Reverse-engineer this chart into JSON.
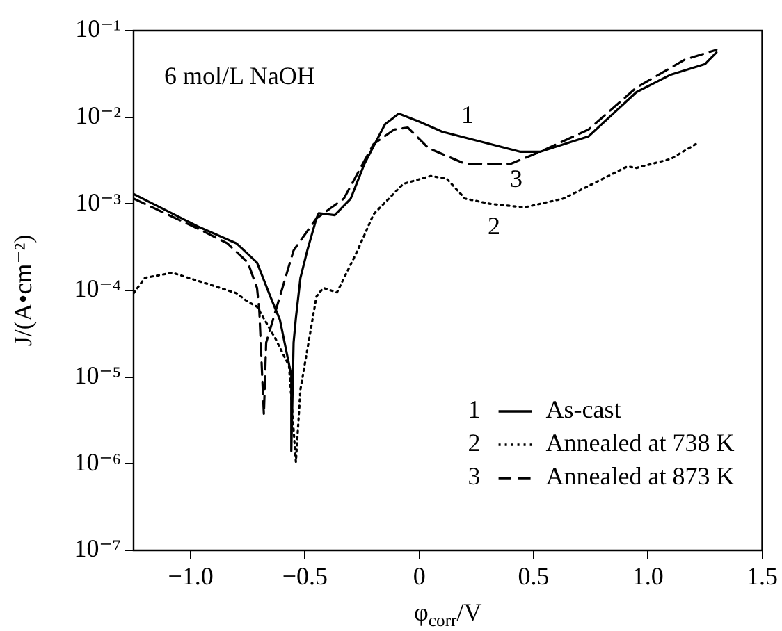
{
  "chart_data": {
    "type": "line",
    "xlabel": "φ$_{corr}$/V",
    "ylabel": "J/(A•cm⁻²)",
    "log": "y",
    "legend": "bottom right",
    "xlim": [
      -1.25,
      1.5
    ],
    "xticks": [
      {
        "value": -1,
        "label": "−1.0"
      },
      {
        "value": -0.5,
        "label": "−0.5"
      },
      0,
      0.5,
      {
        "value": 1,
        "label": "1.0"
      },
      1.5
    ],
    "ylim": [
      1e-07,
      0.1
    ],
    "yticks": [
      {
        "value": 1e-07,
        "label": "10⁻⁷"
      },
      {
        "value": 1e-06,
        "label": "10⁻⁶"
      },
      {
        "value": 1e-05,
        "label": "10⁻⁵"
      },
      {
        "value": 0.0001,
        "label": "10⁻⁴"
      },
      {
        "value": 0.001,
        "label": "10⁻³"
      },
      {
        "value": 0.01,
        "label": "10⁻²"
      },
      {
        "value": 0.1,
        "label": "10⁻¹"
      }
    ],
    "series": [
      {
        "name": "As-cast",
        "color": "#000000",
        "line_style": "solid",
        "x": [
          -1.25,
          -0.97,
          -0.8,
          -0.71,
          -0.65,
          -0.61,
          -0.56,
          -0.56,
          -0.55,
          -0.54,
          -0.52,
          -0.49,
          -0.45,
          -0.44,
          -0.37,
          -0.3,
          -0.24,
          -0.15,
          -0.09,
          0,
          0.1,
          0.31,
          0.44,
          0.53,
          0.74,
          0.95,
          1.1,
          1.25,
          1.3
        ],
        "values": [
          0.0013,
          0.00055,
          0.00035,
          0.00021,
          8.3e-05,
          4.6e-05,
          1.05e-05,
          1.4e-06,
          2.5e-05,
          4.8e-05,
          0.00014,
          0.00029,
          0.00068,
          0.00078,
          0.00074,
          0.00115,
          0.0029,
          0.0083,
          0.011,
          0.0089,
          0.0068,
          0.0049,
          0.004,
          0.004,
          0.006,
          0.0195,
          0.031,
          0.041,
          0.056
        ]
      },
      {
        "name": "Annealed at 738 K",
        "color": "#000000",
        "line_style": "dotted",
        "x": [
          -1.25,
          -1.2,
          -1.08,
          -0.93,
          -0.8,
          -0.75,
          -0.71,
          -0.63,
          -0.57,
          -0.54,
          -0.52,
          -0.45,
          -0.42,
          -0.36,
          -0.27,
          -0.2,
          -0.07,
          0.05,
          0.12,
          0.2,
          0.31,
          0.46,
          0.63,
          0.91,
          0.95,
          1.1,
          1.21
        ],
        "values": [
          9.3e-05,
          0.00014,
          0.00016,
          0.00012,
          9.3e-05,
          7.4e-05,
          6.5e-05,
          2.8e-05,
          1.35e-05,
          1.05e-06,
          7.2e-06,
          8.5e-05,
          0.000107,
          9.5e-05,
          0.00029,
          0.00076,
          0.0017,
          0.0021,
          0.00195,
          0.00115,
          0.001,
          0.00091,
          0.00115,
          0.0027,
          0.0026,
          0.0033,
          0.0049
        ]
      },
      {
        "name": "Annealed at 873 K",
        "color": "#000000",
        "line_style": "dashed",
        "x": [
          -1.25,
          -0.97,
          -0.84,
          -0.75,
          -0.71,
          -0.7,
          -0.68,
          -0.67,
          -0.55,
          -0.45,
          -0.33,
          -0.2,
          -0.11,
          -0.05,
          0.04,
          0.2,
          0.4,
          0.53,
          0.74,
          0.95,
          1.16,
          1.3
        ],
        "values": [
          0.00115,
          0.00052,
          0.00035,
          0.00021,
          0.000107,
          5.9e-05,
          3.7e-06,
          2.5e-05,
          0.00029,
          0.00068,
          0.00115,
          0.0049,
          0.0072,
          0.0076,
          0.0044,
          0.0029,
          0.0029,
          0.004,
          0.0072,
          0.022,
          0.046,
          0.06
        ]
      }
    ],
    "annotations": [
      "6 mol/L NaOH",
      "1",
      "2",
      "3"
    ]
  }
}
